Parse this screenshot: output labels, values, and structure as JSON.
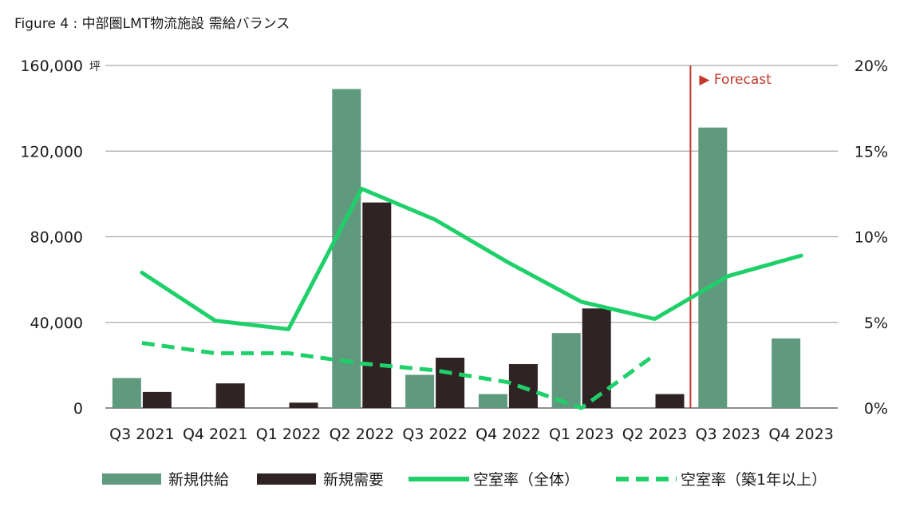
{
  "chart_data": {
    "type": "bar",
    "title": "Figure 4 : 中部圏LMT物流施設 需給バランス",
    "categories": [
      "Q3 2021",
      "Q4 2021",
      "Q1 2022",
      "Q2 2022",
      "Q3 2022",
      "Q4 2022",
      "Q1 2023",
      "Q2 2023",
      "Q3 2023",
      "Q4 2023"
    ],
    "y_left": {
      "unit": "坪",
      "ylim": [
        0,
        160000
      ],
      "ticks": [
        "0",
        "40,000",
        "80,000",
        "120,000",
        "160,000"
      ]
    },
    "y_right": {
      "ylim": [
        0,
        20
      ],
      "ticks": [
        "0%",
        "5%",
        "10%",
        "15%",
        "20%"
      ]
    },
    "grid": true,
    "legend_position": "bottom",
    "forecast": {
      "label": "▶ Forecast",
      "start_category_index": 8,
      "color": "#c0392b"
    },
    "series": [
      {
        "name": "新規供給",
        "kind": "bar",
        "axis": "left",
        "color": "#5f9a7e",
        "values": [
          14000,
          null,
          null,
          149000,
          15500,
          6500,
          35000,
          null,
          131000,
          32500
        ]
      },
      {
        "name": "新規需要",
        "kind": "bar",
        "axis": "left",
        "color": "#2f2323",
        "values": [
          7500,
          11500,
          2500,
          96000,
          23500,
          20500,
          46500,
          6500,
          null,
          null
        ]
      },
      {
        "name": "空室率（全体）",
        "kind": "line",
        "axis": "right",
        "color": "#1fd06a",
        "dash": false,
        "values": [
          7.9,
          5.1,
          4.6,
          12.8,
          11.0,
          8.5,
          6.2,
          5.2,
          7.7,
          8.9
        ]
      },
      {
        "name": "空室率（築1年以上）",
        "kind": "line",
        "axis": "right",
        "color": "#1fd06a",
        "dash": true,
        "values": [
          3.8,
          3.2,
          3.2,
          2.6,
          2.2,
          1.5,
          0.0,
          3.1,
          null,
          null
        ]
      }
    ]
  }
}
